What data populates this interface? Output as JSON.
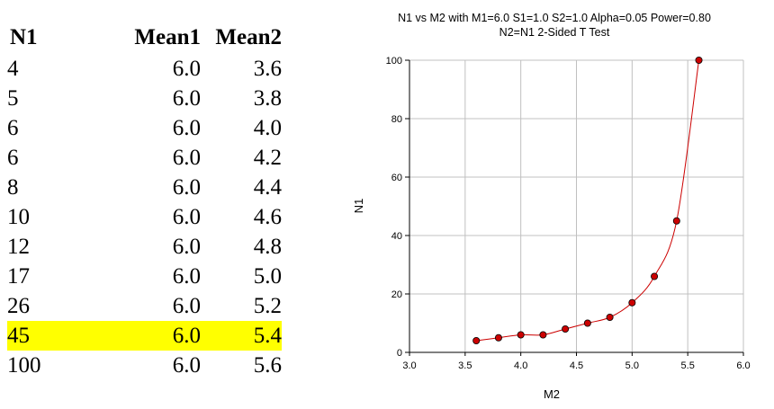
{
  "table": {
    "headers": [
      "N1",
      "Mean1",
      "Mean2"
    ],
    "rows": [
      [
        "4",
        "6.0",
        "3.6"
      ],
      [
        "5",
        "6.0",
        "3.8"
      ],
      [
        "6",
        "6.0",
        "4.0"
      ],
      [
        "6",
        "6.0",
        "4.2"
      ],
      [
        "8",
        "6.0",
        "4.4"
      ],
      [
        "10",
        "6.0",
        "4.6"
      ],
      [
        "12",
        "6.0",
        "4.8"
      ],
      [
        "17",
        "6.0",
        "5.0"
      ],
      [
        "26",
        "6.0",
        "5.2"
      ],
      [
        "45",
        "6.0",
        "5.4"
      ],
      [
        "100",
        "6.0",
        "5.6"
      ]
    ],
    "highlighted_row": 9,
    "highlight_color": "#ffff00"
  },
  "chart_data": {
    "type": "line",
    "title": "N1 vs M2 with M1=6.0 S1=1.0 S2=1.0 Alpha=0.05 Power=0.80",
    "subtitle": "N2=N1 2-Sided T Test",
    "xlabel": "M2",
    "ylabel": "N1",
    "x": [
      3.6,
      3.8,
      4.0,
      4.2,
      4.4,
      4.6,
      4.8,
      5.0,
      5.2,
      5.4,
      5.6
    ],
    "series": [
      {
        "values": [
          4,
          5,
          6,
          6,
          8,
          10,
          12,
          17,
          26,
          45,
          100
        ],
        "color": "#cc0000"
      }
    ],
    "xlim": [
      3.0,
      6.0
    ],
    "ylim": [
      0,
      100
    ],
    "xticks": [
      "3.0",
      "3.5",
      "4.0",
      "4.5",
      "5.0",
      "5.5",
      "6.0"
    ],
    "yticks": [
      "0",
      "20",
      "40",
      "60",
      "80",
      "100"
    ],
    "grid": true,
    "grid_color": "#c0c0c0",
    "marker_color": "#cc0000"
  }
}
